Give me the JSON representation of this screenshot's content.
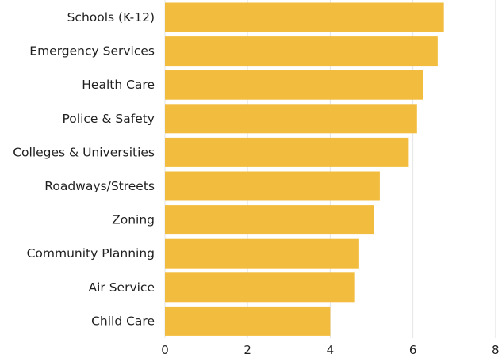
{
  "chart_data": {
    "type": "bar",
    "orientation": "horizontal",
    "categories": [
      "Schools (K-12)",
      "Emergency Services",
      "Health Care",
      "Police & Safety",
      "Colleges & Universities",
      "Roadways/Streets",
      "Zoning",
      "Community Planning",
      "Air Service",
      "Child Care"
    ],
    "values": [
      6.75,
      6.6,
      6.25,
      6.1,
      5.9,
      5.2,
      5.05,
      4.7,
      4.6,
      4.0
    ],
    "xlim": [
      0,
      8
    ],
    "xticks": [
      0,
      2,
      4,
      6,
      8
    ],
    "title": "",
    "xlabel": "",
    "ylabel": "",
    "grid": true,
    "bar_color": "#F2BD3F"
  }
}
